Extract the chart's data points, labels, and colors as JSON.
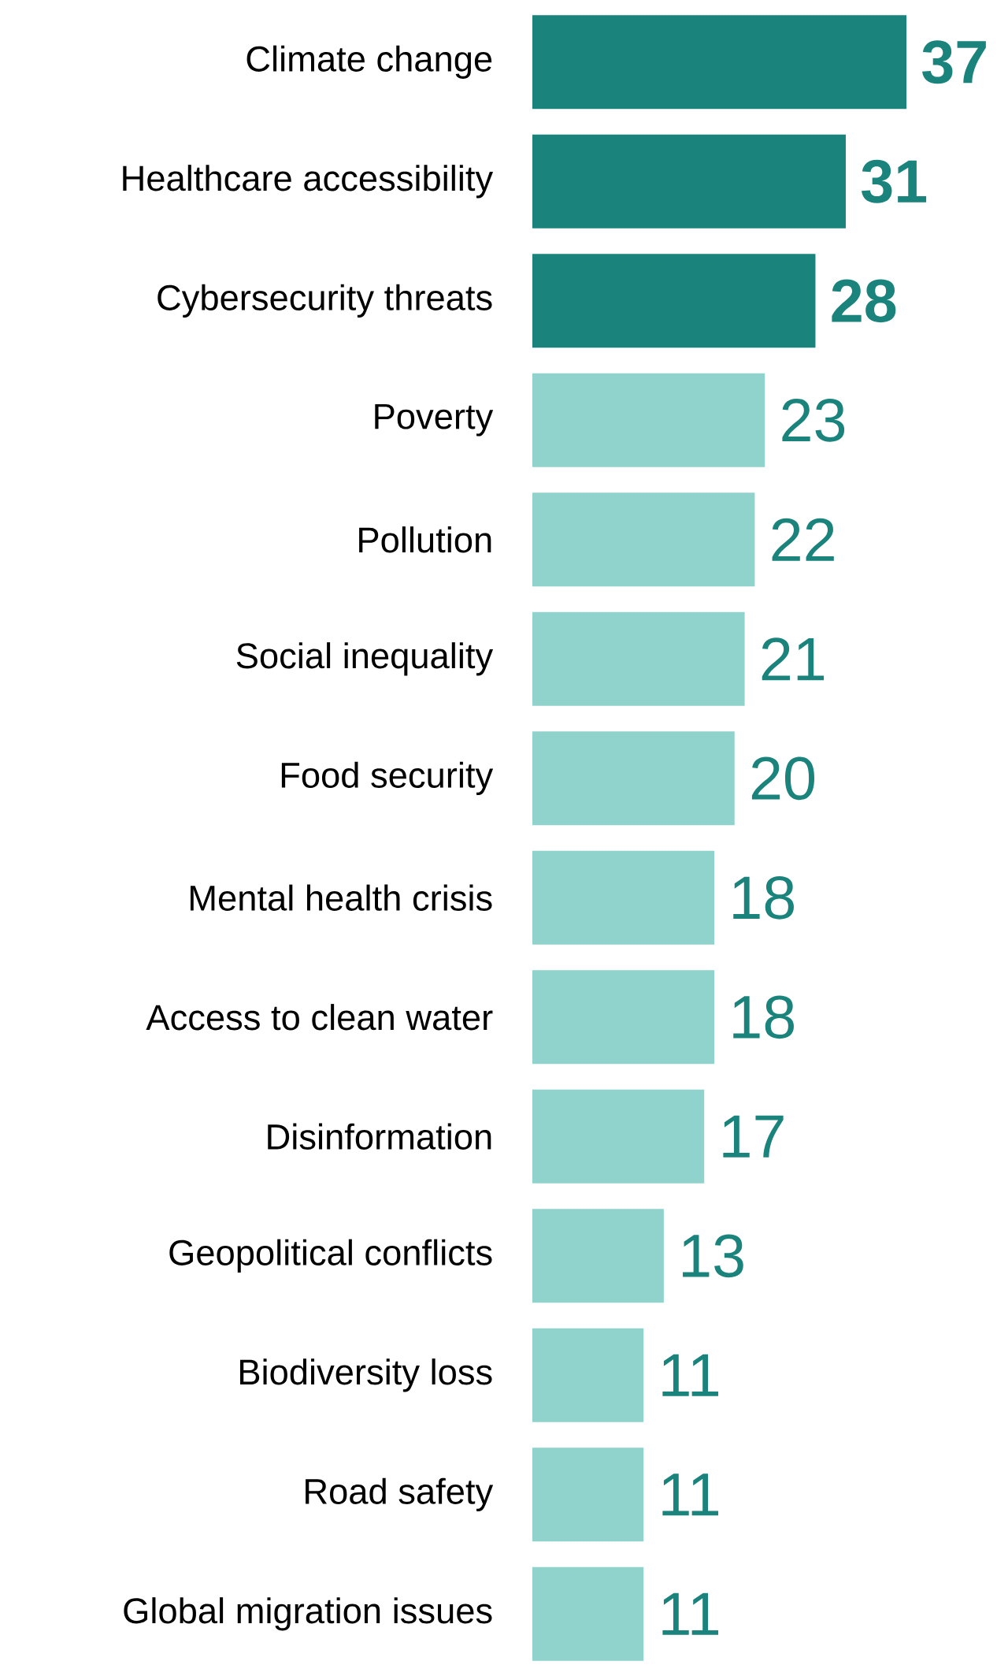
{
  "chart_data": {
    "type": "bar",
    "orientation": "horizontal",
    "categories": [
      "Climate change",
      "Healthcare accessibility",
      "Cybersecurity threats",
      "Poverty",
      "Pollution",
      "Social inequality",
      "Food security",
      "Mental health crisis",
      "Access to clean water",
      "Disinformation",
      "Geopolitical conflicts",
      "Biodiversity loss",
      "Road safety",
      "Global migration issues"
    ],
    "values": [
      37,
      31,
      28,
      23,
      22,
      21,
      20,
      18,
      18,
      17,
      13,
      11,
      11,
      11
    ],
    "value_labels": [
      "**37**",
      "**31**",
      "**28**",
      "23",
      "22",
      "21",
      "20",
      "18",
      "18",
      "17",
      "13",
      "11",
      "11",
      "11"
    ],
    "colors": [
      "#1a837c",
      "#1a837c",
      "#1a837c",
      "#8fd3cc",
      "#8fd3cc",
      "#8fd3cc",
      "#8fd3cc",
      "#8fd3cc",
      "#8fd3cc",
      "#8fd3cc",
      "#8fd3cc",
      "#8fd3cc",
      "#8fd3cc",
      "#8fd3cc"
    ]
  }
}
